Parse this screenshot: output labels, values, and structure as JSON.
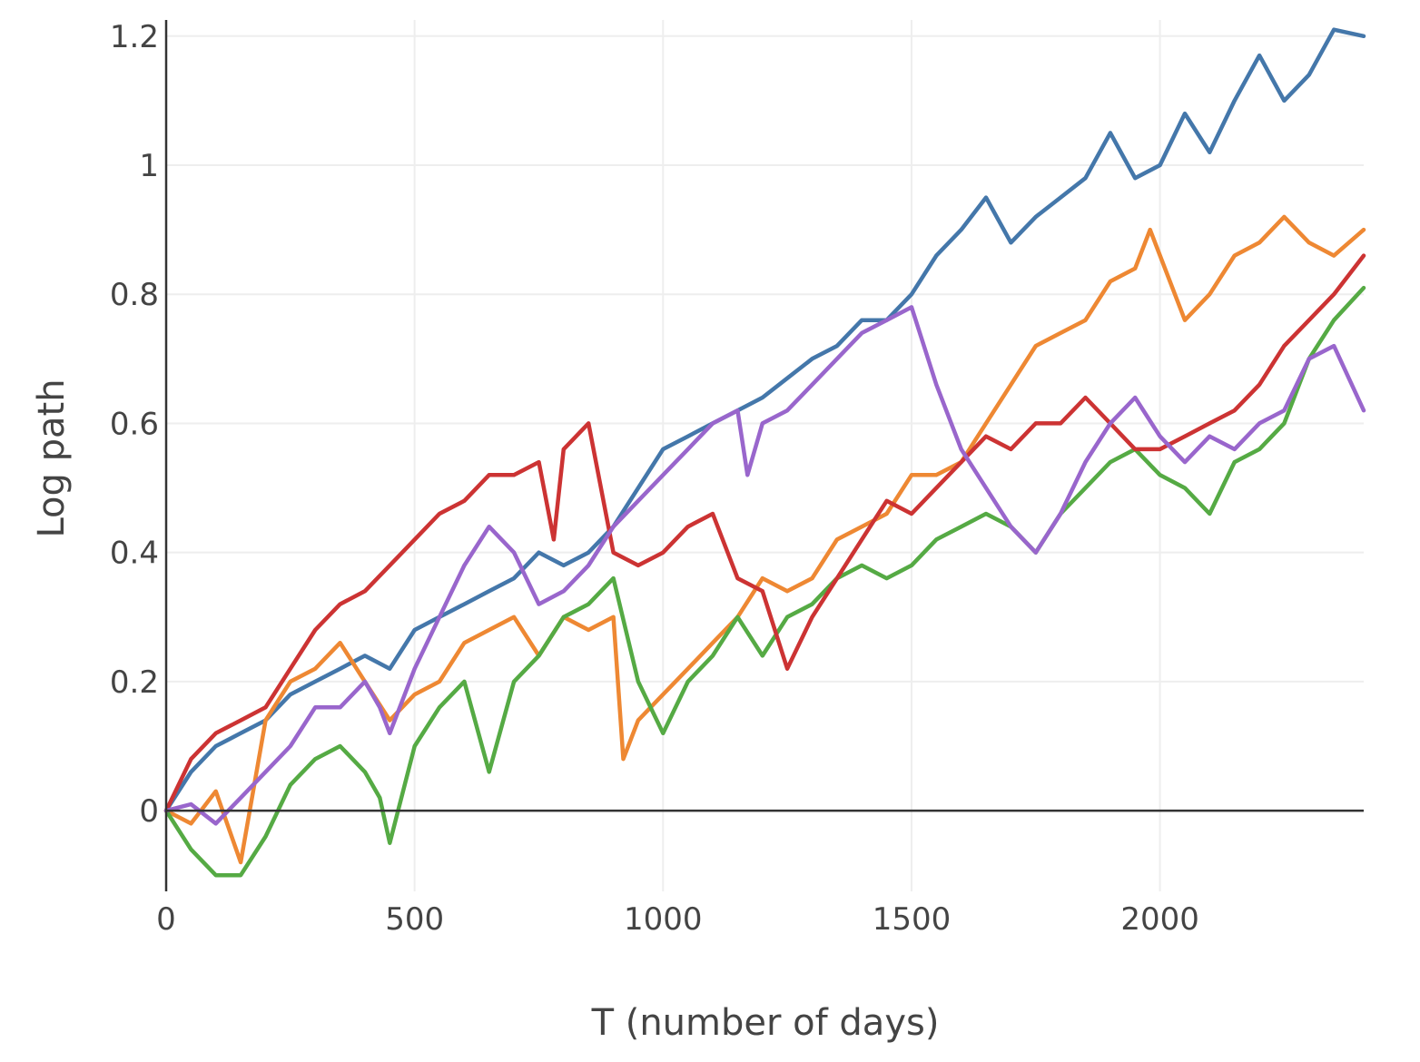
{
  "chart_data": {
    "type": "line",
    "xlabel": "T (number of days)",
    "ylabel": "Log path",
    "xlim": [
      0,
      2410
    ],
    "ylim": [
      -0.125,
      1.225
    ],
    "x_ticks": [
      {
        "value": 0,
        "label": "0"
      },
      {
        "value": 500,
        "label": "500"
      },
      {
        "value": 1000,
        "label": "1000"
      },
      {
        "value": 1500,
        "label": "1500"
      },
      {
        "value": 2000,
        "label": "2000"
      }
    ],
    "y_ticks": [
      {
        "value": 0,
        "label": "0"
      },
      {
        "value": 0.2,
        "label": "0.2"
      },
      {
        "value": 0.4,
        "label": "0.4"
      },
      {
        "value": 0.6,
        "label": "0.6"
      },
      {
        "value": 0.8,
        "label": "0.8"
      },
      {
        "value": 1,
        "label": "1"
      },
      {
        "value": 1.2,
        "label": "1.2"
      }
    ],
    "grid": true,
    "legend": "none",
    "series": [
      {
        "color": "#4477aa",
        "x": [
          0,
          50,
          100,
          150,
          200,
          250,
          300,
          350,
          400,
          450,
          500,
          550,
          600,
          650,
          700,
          750,
          800,
          850,
          900,
          950,
          1000,
          1050,
          1100,
          1150,
          1200,
          1250,
          1300,
          1350,
          1400,
          1450,
          1500,
          1550,
          1600,
          1650,
          1700,
          1750,
          1800,
          1850,
          1900,
          1950,
          2000,
          2050,
          2100,
          2150,
          2200,
          2250,
          2300,
          2350,
          2410
        ],
        "y": [
          0,
          0.06,
          0.1,
          0.12,
          0.14,
          0.18,
          0.2,
          0.22,
          0.24,
          0.22,
          0.28,
          0.3,
          0.32,
          0.34,
          0.36,
          0.4,
          0.38,
          0.4,
          0.44,
          0.5,
          0.56,
          0.58,
          0.6,
          0.62,
          0.64,
          0.67,
          0.7,
          0.72,
          0.76,
          0.76,
          0.8,
          0.86,
          0.9,
          0.95,
          0.88,
          0.92,
          0.95,
          0.98,
          1.05,
          0.98,
          1.0,
          1.08,
          1.02,
          1.1,
          1.17,
          1.1,
          1.14,
          1.21,
          1.2
        ]
      },
      {
        "color": "#ee8833",
        "x": [
          0,
          50,
          100,
          150,
          200,
          250,
          300,
          350,
          400,
          450,
          500,
          550,
          600,
          650,
          700,
          750,
          800,
          850,
          900,
          920,
          950,
          1000,
          1050,
          1100,
          1150,
          1200,
          1250,
          1300,
          1350,
          1400,
          1450,
          1500,
          1550,
          1600,
          1650,
          1700,
          1750,
          1800,
          1850,
          1900,
          1950,
          1980,
          2050,
          2100,
          2150,
          2200,
          2250,
          2300,
          2350,
          2410
        ],
        "y": [
          0,
          -0.02,
          0.03,
          -0.08,
          0.14,
          0.2,
          0.22,
          0.26,
          0.2,
          0.14,
          0.18,
          0.2,
          0.26,
          0.28,
          0.3,
          0.24,
          0.3,
          0.28,
          0.3,
          0.08,
          0.14,
          0.18,
          0.22,
          0.26,
          0.3,
          0.36,
          0.34,
          0.36,
          0.42,
          0.44,
          0.46,
          0.52,
          0.52,
          0.54,
          0.6,
          0.66,
          0.72,
          0.74,
          0.76,
          0.82,
          0.84,
          0.9,
          0.76,
          0.8,
          0.86,
          0.88,
          0.92,
          0.88,
          0.86,
          0.9
        ]
      },
      {
        "color": "#55aa44",
        "x": [
          0,
          50,
          100,
          150,
          200,
          250,
          300,
          350,
          400,
          430,
          450,
          500,
          550,
          600,
          650,
          700,
          750,
          800,
          850,
          900,
          950,
          1000,
          1050,
          1100,
          1150,
          1200,
          1250,
          1300,
          1350,
          1400,
          1450,
          1500,
          1550,
          1600,
          1650,
          1700,
          1750,
          1800,
          1850,
          1900,
          1950,
          2000,
          2050,
          2100,
          2150,
          2200,
          2250,
          2300,
          2350,
          2410
        ],
        "y": [
          0,
          -0.06,
          -0.1,
          -0.1,
          -0.04,
          0.04,
          0.08,
          0.1,
          0.06,
          0.02,
          -0.05,
          0.1,
          0.16,
          0.2,
          0.06,
          0.2,
          0.24,
          0.3,
          0.32,
          0.36,
          0.2,
          0.12,
          0.2,
          0.24,
          0.3,
          0.24,
          0.3,
          0.32,
          0.36,
          0.38,
          0.36,
          0.38,
          0.42,
          0.44,
          0.46,
          0.44,
          0.4,
          0.46,
          0.5,
          0.54,
          0.56,
          0.52,
          0.5,
          0.46,
          0.54,
          0.56,
          0.6,
          0.7,
          0.76,
          0.81
        ]
      },
      {
        "color": "#cc3333",
        "x": [
          0,
          50,
          100,
          150,
          200,
          250,
          300,
          350,
          400,
          450,
          500,
          550,
          600,
          650,
          700,
          750,
          780,
          800,
          850,
          900,
          950,
          1000,
          1050,
          1100,
          1150,
          1200,
          1250,
          1300,
          1350,
          1400,
          1450,
          1500,
          1550,
          1600,
          1650,
          1700,
          1750,
          1800,
          1850,
          1900,
          1950,
          2000,
          2050,
          2100,
          2150,
          2200,
          2250,
          2300,
          2350,
          2410
        ],
        "y": [
          0,
          0.08,
          0.12,
          0.14,
          0.16,
          0.22,
          0.28,
          0.32,
          0.34,
          0.38,
          0.42,
          0.46,
          0.48,
          0.52,
          0.52,
          0.54,
          0.42,
          0.56,
          0.6,
          0.4,
          0.38,
          0.4,
          0.44,
          0.46,
          0.36,
          0.34,
          0.22,
          0.3,
          0.36,
          0.42,
          0.48,
          0.46,
          0.5,
          0.54,
          0.58,
          0.56,
          0.6,
          0.6,
          0.64,
          0.6,
          0.56,
          0.56,
          0.58,
          0.6,
          0.62,
          0.66,
          0.72,
          0.76,
          0.8,
          0.86
        ]
      },
      {
        "color": "#9966cc",
        "x": [
          0,
          50,
          100,
          150,
          200,
          250,
          300,
          350,
          400,
          430,
          450,
          500,
          550,
          600,
          650,
          700,
          750,
          800,
          850,
          900,
          950,
          1000,
          1050,
          1100,
          1150,
          1170,
          1200,
          1250,
          1300,
          1350,
          1400,
          1450,
          1500,
          1550,
          1600,
          1650,
          1700,
          1750,
          1800,
          1850,
          1900,
          1950,
          2000,
          2050,
          2100,
          2150,
          2200,
          2250,
          2300,
          2350,
          2410
        ],
        "y": [
          0,
          0.01,
          -0.02,
          0.02,
          0.06,
          0.1,
          0.16,
          0.16,
          0.2,
          0.16,
          0.12,
          0.22,
          0.3,
          0.38,
          0.44,
          0.4,
          0.32,
          0.34,
          0.38,
          0.44,
          0.48,
          0.52,
          0.56,
          0.6,
          0.62,
          0.52,
          0.6,
          0.62,
          0.66,
          0.7,
          0.74,
          0.76,
          0.78,
          0.66,
          0.56,
          0.5,
          0.44,
          0.4,
          0.46,
          0.54,
          0.6,
          0.64,
          0.58,
          0.54,
          0.58,
          0.56,
          0.6,
          0.62,
          0.7,
          0.72,
          0.62
        ]
      }
    ]
  }
}
